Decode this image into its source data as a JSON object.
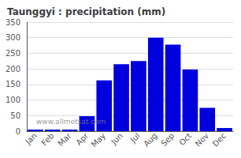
{
  "chart_data": {
    "type": "bar",
    "title": "Taunggyi : precipitation (mm)",
    "categories": [
      "Jan",
      "Feb",
      "Mar",
      "Apr",
      "May",
      "Jun",
      "Jul",
      "Aug",
      "Sep",
      "Oct",
      "Nov",
      "Dec"
    ],
    "values": [
      5,
      5,
      5,
      48,
      163,
      215,
      225,
      300,
      278,
      198,
      75,
      10
    ],
    "color": "#0000dd",
    "ylim": [
      0,
      350
    ],
    "yticks": [
      0,
      50,
      100,
      150,
      200,
      250,
      300,
      350
    ],
    "grid": true,
    "annotations": [
      "www.allmetsat.com"
    ]
  }
}
